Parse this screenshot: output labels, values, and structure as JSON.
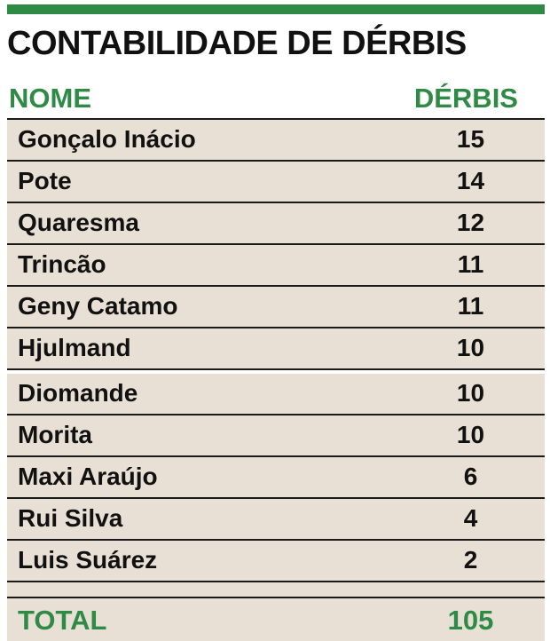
{
  "title": "CONTABILIDADE DE DÉRBIS",
  "header": {
    "name_label": "NOME",
    "count_label": "DÉRBIS"
  },
  "rows": [
    {
      "name": "Gonçalo Inácio",
      "value": "15"
    },
    {
      "name": "Pote",
      "value": "14"
    },
    {
      "name": "Quaresma",
      "value": "12"
    },
    {
      "name": "Trincão",
      "value": "11"
    },
    {
      "name": "Geny Catamo",
      "value": "11"
    },
    {
      "name": "Hjulmand",
      "value": "10"
    },
    {
      "name": "Diomande",
      "value": "10"
    },
    {
      "name": "Morita",
      "value": "10"
    },
    {
      "name": "Maxi Araújo",
      "value": "6"
    },
    {
      "name": "Rui Silva",
      "value": "4"
    },
    {
      "name": "Luis Suárez",
      "value": "2"
    }
  ],
  "total": {
    "label": "TOTAL",
    "value": "105"
  },
  "colors": {
    "accent": "#2e8a45",
    "row_bg": "#e8e0d4",
    "text": "#111111"
  }
}
